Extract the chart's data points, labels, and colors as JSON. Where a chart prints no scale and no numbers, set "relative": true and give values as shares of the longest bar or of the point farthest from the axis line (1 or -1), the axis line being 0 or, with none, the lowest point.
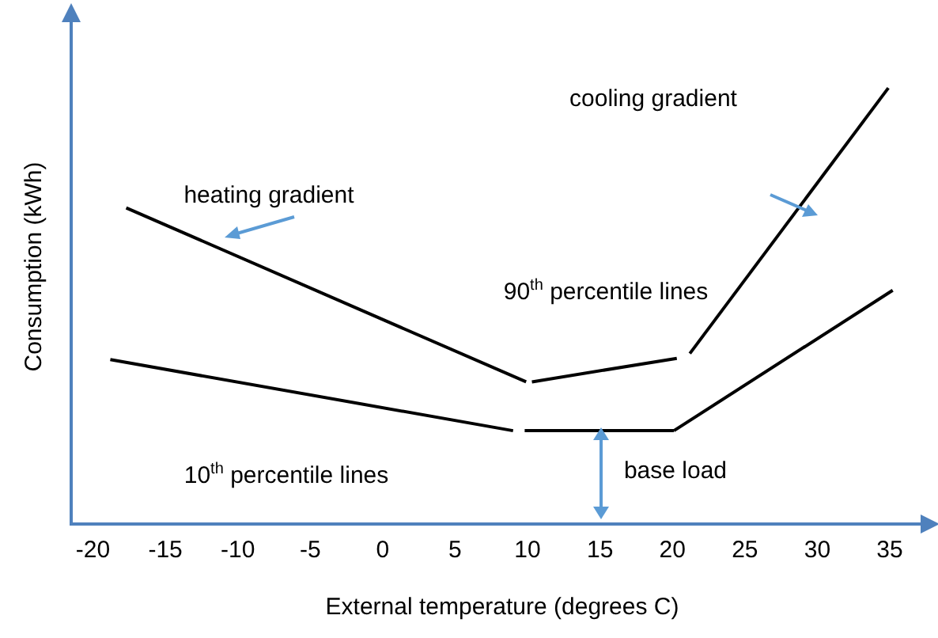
{
  "chart_data": {
    "type": "line",
    "relative": true,
    "xlabel": "External temperature (degrees C)",
    "ylabel": "Consumption (kWh)",
    "xlim": [
      -21.5,
      38
    ],
    "xticks": [
      -20,
      -15,
      -10,
      -5,
      0,
      5,
      10,
      15,
      20,
      25,
      30,
      35
    ],
    "marker": "none",
    "legend": false,
    "series": [
      {
        "color": "#000000",
        "x": [
          -17.7,
          9.9
        ],
        "values": [
          0.725,
          0.326
        ]
      },
      {
        "color": "#000000",
        "x": [
          10.3,
          20.3
        ],
        "values": [
          0.326,
          0.38
        ]
      },
      {
        "color": "#000000",
        "x": [
          21.2,
          34.9
        ],
        "values": [
          0.391,
          1
        ]
      },
      {
        "color": "#000000",
        "x": [
          -18.8,
          9.0
        ],
        "values": [
          0.377,
          0.214
        ]
      },
      {
        "color": "#000000",
        "x": [
          9.8,
          20.1
        ],
        "values": [
          0.214,
          0.214
        ]
      },
      {
        "color": "#000000",
        "x": [
          20.1,
          35.2
        ],
        "values": [
          0.214,
          0.536
        ]
      }
    ],
    "annotations": [
      "heating gradient",
      "cooling gradient",
      "90$^{th}$ percentile lines",
      "10$^{th}$ percentile lines",
      "base load"
    ]
  }
}
